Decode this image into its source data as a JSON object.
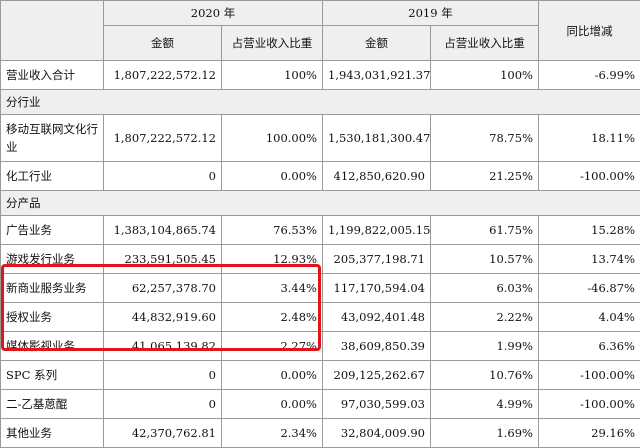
{
  "header": {
    "year2020": "2020 年",
    "year2019": "2019 年",
    "yoy": "同比增减",
    "amount": "金额",
    "ratio": "占营业收入比重"
  },
  "total": {
    "label": "营业收入合计",
    "amt2020": "1,807,222,572.12",
    "pct2020": "100%",
    "amt2019": "1,943,031,921.37",
    "pct2019": "100%",
    "yoy": "-6.99%"
  },
  "section_industry": "分行业",
  "industry_rows": [
    {
      "label": "移动互联网文化行业",
      "amt2020": "1,807,222,572.12",
      "pct2020": "100.00%",
      "amt2019": "1,530,181,300.47",
      "pct2019": "78.75%",
      "yoy": "18.11%"
    },
    {
      "label": "化工行业",
      "amt2020": "0",
      "pct2020": "0.00%",
      "amt2019": "412,850,620.90",
      "pct2019": "21.25%",
      "yoy": "-100.00%"
    }
  ],
  "section_product": "分产品",
  "product_rows": [
    {
      "label": "广告业务",
      "amt2020": "1,383,104,865.74",
      "pct2020": "76.53%",
      "amt2019": "1,199,822,005.15",
      "pct2019": "61.75%",
      "yoy": "15.28%"
    },
    {
      "label": "游戏发行业务",
      "amt2020": "233,591,505.45",
      "pct2020": "12.93%",
      "amt2019": "205,377,198.71",
      "pct2019": "10.57%",
      "yoy": "13.74%"
    },
    {
      "label": "新商业服务业务",
      "amt2020": "62,257,378.70",
      "pct2020": "3.44%",
      "amt2019": "117,170,594.04",
      "pct2019": "6.03%",
      "yoy": "-46.87%"
    },
    {
      "label": "授权业务",
      "amt2020": "44,832,919.60",
      "pct2020": "2.48%",
      "amt2019": "43,092,401.48",
      "pct2019": "2.22%",
      "yoy": "4.04%"
    },
    {
      "label": "媒体影视业务",
      "amt2020": "41,065,139.82",
      "pct2020": "2.27%",
      "amt2019": "38,609,850.39",
      "pct2019": "1.99%",
      "yoy": "6.36%"
    },
    {
      "label": "SPC 系列",
      "amt2020": "0",
      "pct2020": "0.00%",
      "amt2019": "209,125,262.67",
      "pct2019": "10.76%",
      "yoy": "-100.00%"
    },
    {
      "label": "二-乙基蒽醌",
      "amt2020": "0",
      "pct2020": "0.00%",
      "amt2019": "97,030,599.03",
      "pct2019": "4.99%",
      "yoy": "-100.00%"
    },
    {
      "label": "其他业务",
      "amt2020": "42,370,762.81",
      "pct2020": "2.34%",
      "amt2019": "32,804,009.90",
      "pct2019": "1.69%",
      "yoy": "29.16%"
    }
  ],
  "colors": {
    "highlight": "#e0141b",
    "header_bg": "#efefef",
    "border": "#9a9a9a"
  }
}
